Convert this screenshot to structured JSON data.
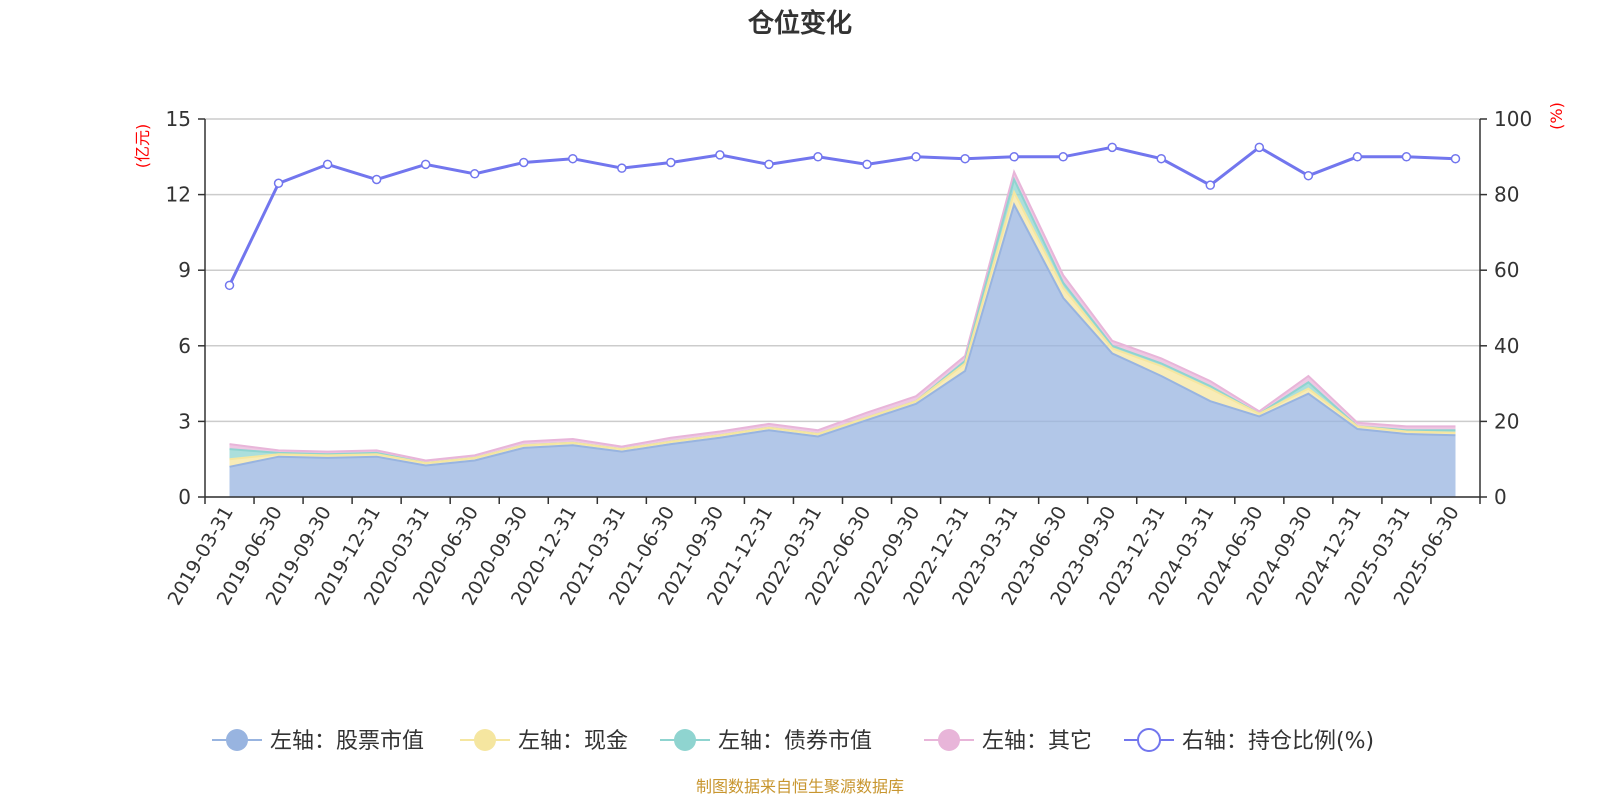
{
  "chart_data": {
    "type": "area",
    "title": "仓位变化",
    "left_axis": {
      "unit": "(亿元)",
      "ylim": [
        0,
        15
      ],
      "ticks": [
        0,
        3,
        6,
        9,
        12,
        15
      ]
    },
    "right_axis": {
      "unit": "(%)",
      "ylim": [
        0,
        100
      ],
      "ticks": [
        0,
        20,
        40,
        60,
        80,
        100
      ]
    },
    "categories": [
      "2019-03-31",
      "2019-06-30",
      "2019-09-30",
      "2019-12-31",
      "2020-03-31",
      "2020-06-30",
      "2020-09-30",
      "2020-12-31",
      "2021-03-31",
      "2021-06-30",
      "2021-09-30",
      "2021-12-31",
      "2022-03-31",
      "2022-06-30",
      "2022-09-30",
      "2022-12-31",
      "2023-03-31",
      "2023-06-30",
      "2023-09-30",
      "2023-12-31",
      "2024-03-31",
      "2024-06-30",
      "2024-09-30",
      "2024-12-31",
      "2025-03-31",
      "2025-06-30"
    ],
    "stacked_series": [
      {
        "name": "左轴：股票市值",
        "color": "#98b4e0",
        "values": [
          1.2,
          1.6,
          1.55,
          1.6,
          1.25,
          1.45,
          1.95,
          2.05,
          1.8,
          2.1,
          2.35,
          2.65,
          2.4,
          3.05,
          3.7,
          5.0,
          11.6,
          7.9,
          5.7,
          4.8,
          3.8,
          3.2,
          4.1,
          2.7,
          2.5,
          2.45
        ]
      },
      {
        "name": "左轴：现金",
        "color": "#f5e6a0",
        "values": [
          0.3,
          0.1,
          0.1,
          0.1,
          0.1,
          0.1,
          0.1,
          0.1,
          0.1,
          0.1,
          0.1,
          0.1,
          0.1,
          0.1,
          0.1,
          0.3,
          0.5,
          0.4,
          0.2,
          0.4,
          0.5,
          0.1,
          0.2,
          0.1,
          0.1,
          0.1
        ]
      },
      {
        "name": "左轴：债券市值",
        "color": "#8fd4d0",
        "values": [
          0.4,
          0.05,
          0.05,
          0.05,
          0.0,
          0.0,
          0.0,
          0.0,
          0.0,
          0.0,
          0.0,
          0.0,
          0.0,
          0.0,
          0.0,
          0.1,
          0.5,
          0.2,
          0.1,
          0.1,
          0.1,
          0.0,
          0.25,
          0.0,
          0.05,
          0.1
        ]
      },
      {
        "name": "左轴：其它",
        "color": "#e8b5d9",
        "values": [
          0.2,
          0.1,
          0.1,
          0.1,
          0.1,
          0.1,
          0.15,
          0.15,
          0.1,
          0.15,
          0.15,
          0.15,
          0.15,
          0.2,
          0.2,
          0.2,
          0.3,
          0.3,
          0.2,
          0.2,
          0.2,
          0.1,
          0.25,
          0.15,
          0.15,
          0.15
        ]
      }
    ],
    "line_series": {
      "name": "右轴：持仓比例(%)",
      "color": "#7276ee",
      "values": [
        56,
        83,
        88,
        84,
        88,
        85.5,
        88.5,
        89.5,
        87,
        88.5,
        90.5,
        88,
        90,
        88,
        90,
        89.5,
        90,
        90,
        92.5,
        89.5,
        82.5,
        92.5,
        85,
        90,
        90,
        89.5
      ]
    },
    "legend_position": "bottom",
    "grid": true,
    "source": "制图数据来自恒生聚源数据库"
  }
}
